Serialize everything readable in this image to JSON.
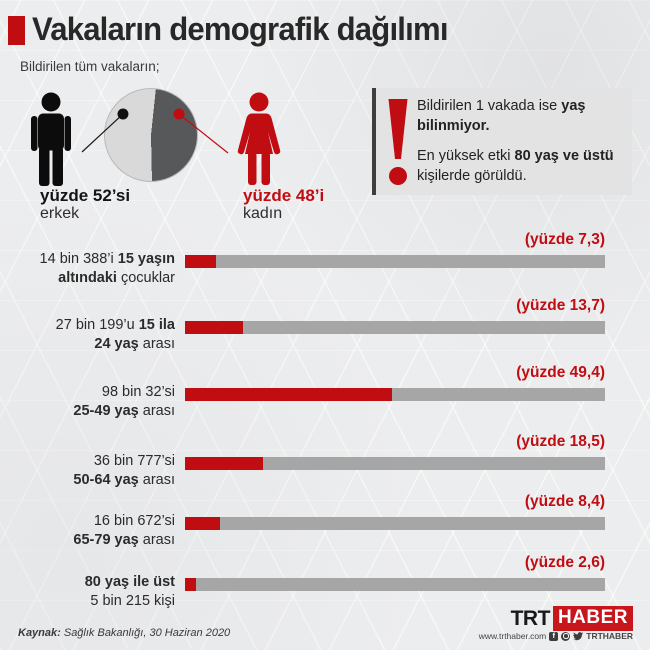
{
  "header": {
    "title": "Vakaların demografik dağılımı",
    "subtitle": "Bildirilen tüm vakaların;"
  },
  "gender": {
    "male_value": 52,
    "female_value": 48,
    "male_pct_label": "yüzde 52’si",
    "male_word": "erkek",
    "female_pct_label": "yüzde 48’i",
    "female_word": "kadın"
  },
  "note": {
    "line1_regular": "Bildirilen 1 vakada ise ",
    "line1_bold": "yaş",
    "line2_bold": "bilinmiyor.",
    "line3_regular": "En yüksek etki ",
    "line3_bold": "80 yaş ve üstü",
    "line4_regular": "kişilerde görüldü."
  },
  "rows": [
    {
      "pct_label": "(yüzde 7,3)",
      "value": 7.3,
      "l1_regular": "14 bin 388’i ",
      "l1_bold": "15 yaşın",
      "l2_bold": "altındaki",
      "l2_regular": " çocuklar"
    },
    {
      "pct_label": "(yüzde 13,7)",
      "value": 13.7,
      "l1_regular": "27 bin 199’u ",
      "l1_bold": "15 ila",
      "l2_bold": "24 yaş",
      "l2_regular": " arası"
    },
    {
      "pct_label": "(yüzde 49,4)",
      "value": 49.4,
      "l1_regular": "98 bin 32’si",
      "l1_bold": "",
      "l2_bold": "25-49 yaş",
      "l2_regular": " arası"
    },
    {
      "pct_label": "(yüzde 18,5)",
      "value": 18.5,
      "l1_regular": "36 bin 777’si",
      "l1_bold": "",
      "l2_bold": "50-64 yaş",
      "l2_regular": " arası"
    },
    {
      "pct_label": "(yüzde 8,4)",
      "value": 8.4,
      "l1_regular": "16 bin 672’si",
      "l1_bold": "",
      "l2_bold": "65-79 yaş",
      "l2_regular": " arası"
    },
    {
      "pct_label": "(yüzde 2,6)",
      "value": 2.6,
      "l1_regular": "",
      "l1_bold": "80 yaş ile üst",
      "l2_bold": "",
      "l2_regular": "5 bin 215 kişi"
    }
  ],
  "footer": {
    "source_bold": "Kaynak:",
    "source_rest": " Sağlık Bakanlığı, 30 Haziran 2020",
    "logo_trt": "TRT",
    "logo_haber": "HABER",
    "site": "www.trthaber.com",
    "social_handle": "TRTHABER",
    "facebook_glyph": "f"
  },
  "colors": {
    "accent_red": "#c00d12",
    "bar_gray": "#a6a6a7",
    "pie_light": "#d9d9d9",
    "pie_dark": "#57585a"
  },
  "chart_data": [
    {
      "type": "pie",
      "title": "Bildirilen tüm vakaların cinsiyet dağılımı",
      "labels": [
        "erkek",
        "kadın"
      ],
      "values": [
        52,
        48
      ],
      "colors": [
        "#d9d9d9",
        "#57585a"
      ]
    },
    {
      "type": "bar",
      "title": "Yaş gruplarına göre vaka dağılımı",
      "categories": [
        "15 yaşın altındaki çocuklar",
        "15 ila 24 yaş arası",
        "25-49 yaş arası",
        "50-64 yaş arası",
        "65-79 yaş arası",
        "80 yaş ile üst"
      ],
      "counts": [
        14388,
        27199,
        98032,
        36777,
        16672,
        5215
      ],
      "values": [
        7.3,
        13.7,
        49.4,
        18.5,
        8.4,
        2.6
      ],
      "value_unit": "yüzde",
      "xlabel": "",
      "ylabel": "",
      "xlim": [
        0,
        100
      ],
      "legend": false,
      "grid": false
    }
  ]
}
